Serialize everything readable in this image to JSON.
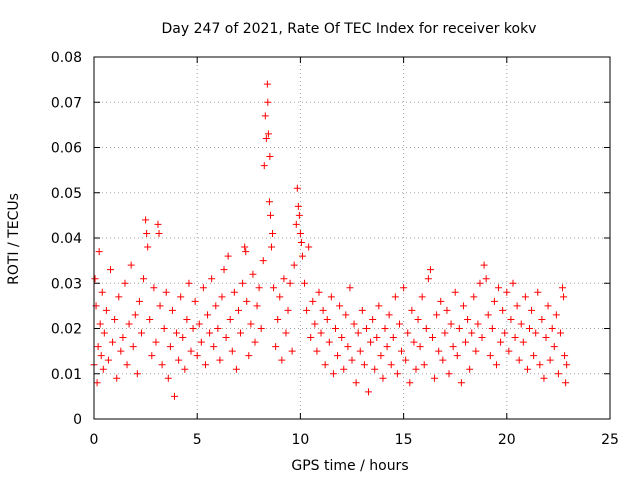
{
  "chart_data": {
    "type": "scatter",
    "title": "Day 247 of 2021, Rate Of TEC Index for receiver kokv",
    "xlabel": "GPS time / hours",
    "ylabel": "ROTI / TECUs",
    "xlim": [
      0,
      25
    ],
    "ylim": [
      0,
      0.08
    ],
    "xticks": [
      0,
      5,
      10,
      15,
      20,
      25
    ],
    "xtick_labels": [
      "0",
      "5",
      "10",
      "15",
      "20",
      "25"
    ],
    "yticks": [
      0,
      0.01,
      0.02,
      0.03,
      0.04,
      0.05,
      0.06,
      0.07,
      0.08
    ],
    "ytick_labels": [
      "0",
      "0.01",
      "0.02",
      "0.03",
      "0.04",
      "0.05",
      "0.06",
      "0.07",
      "0.08"
    ],
    "grid": true,
    "marker": "plus",
    "color": "#ff0000",
    "series": [
      {
        "points": [
          [
            0.0,
            0.012
          ],
          [
            0.05,
            0.031
          ],
          [
            0.1,
            0.025
          ],
          [
            0.15,
            0.008
          ],
          [
            0.2,
            0.016
          ],
          [
            0.25,
            0.037
          ],
          [
            0.3,
            0.021
          ],
          [
            0.35,
            0.014
          ],
          [
            0.4,
            0.028
          ],
          [
            0.45,
            0.011
          ],
          [
            0.5,
            0.019
          ],
          [
            0.6,
            0.024
          ],
          [
            0.7,
            0.013
          ],
          [
            0.8,
            0.033
          ],
          [
            0.9,
            0.017
          ],
          [
            1.0,
            0.022
          ],
          [
            1.1,
            0.009
          ],
          [
            1.2,
            0.027
          ],
          [
            1.3,
            0.015
          ],
          [
            1.4,
            0.018
          ],
          [
            1.5,
            0.03
          ],
          [
            1.6,
            0.012
          ],
          [
            1.7,
            0.021
          ],
          [
            1.8,
            0.034
          ],
          [
            1.9,
            0.016
          ],
          [
            2.0,
            0.023
          ],
          [
            2.1,
            0.01
          ],
          [
            2.2,
            0.026
          ],
          [
            2.3,
            0.019
          ],
          [
            2.4,
            0.031
          ],
          [
            2.5,
            0.044
          ],
          [
            2.55,
            0.041
          ],
          [
            2.6,
            0.038
          ],
          [
            2.7,
            0.022
          ],
          [
            2.8,
            0.014
          ],
          [
            2.9,
            0.029
          ],
          [
            3.0,
            0.017
          ],
          [
            3.1,
            0.043
          ],
          [
            3.15,
            0.041
          ],
          [
            3.2,
            0.025
          ],
          [
            3.3,
            0.012
          ],
          [
            3.4,
            0.02
          ],
          [
            3.5,
            0.028
          ],
          [
            3.6,
            0.009
          ],
          [
            3.7,
            0.016
          ],
          [
            3.8,
            0.024
          ],
          [
            3.9,
            0.005
          ],
          [
            4.0,
            0.019
          ],
          [
            4.1,
            0.013
          ],
          [
            4.2,
            0.027
          ],
          [
            4.3,
            0.018
          ],
          [
            4.4,
            0.011
          ],
          [
            4.5,
            0.022
          ],
          [
            4.6,
            0.03
          ],
          [
            4.7,
            0.015
          ],
          [
            4.8,
            0.02
          ],
          [
            4.9,
            0.026
          ],
          [
            5.0,
            0.014
          ],
          [
            5.1,
            0.021
          ],
          [
            5.2,
            0.017
          ],
          [
            5.3,
            0.029
          ],
          [
            5.4,
            0.012
          ],
          [
            5.5,
            0.023
          ],
          [
            5.6,
            0.019
          ],
          [
            5.7,
            0.031
          ],
          [
            5.8,
            0.016
          ],
          [
            5.9,
            0.025
          ],
          [
            6.0,
            0.02
          ],
          [
            6.1,
            0.013
          ],
          [
            6.2,
            0.027
          ],
          [
            6.3,
            0.033
          ],
          [
            6.4,
            0.018
          ],
          [
            6.5,
            0.036
          ],
          [
            6.6,
            0.022
          ],
          [
            6.7,
            0.015
          ],
          [
            6.8,
            0.028
          ],
          [
            6.9,
            0.011
          ],
          [
            7.0,
            0.024
          ],
          [
            7.1,
            0.019
          ],
          [
            7.2,
            0.03
          ],
          [
            7.3,
            0.038
          ],
          [
            7.35,
            0.037
          ],
          [
            7.4,
            0.026
          ],
          [
            7.5,
            0.014
          ],
          [
            7.6,
            0.021
          ],
          [
            7.7,
            0.032
          ],
          [
            7.8,
            0.017
          ],
          [
            7.9,
            0.025
          ],
          [
            8.0,
            0.029
          ],
          [
            8.1,
            0.02
          ],
          [
            8.2,
            0.035
          ],
          [
            8.25,
            0.056
          ],
          [
            8.3,
            0.067
          ],
          [
            8.35,
            0.062
          ],
          [
            8.4,
            0.074
          ],
          [
            8.42,
            0.07
          ],
          [
            8.45,
            0.063
          ],
          [
            8.5,
            0.048
          ],
          [
            8.52,
            0.058
          ],
          [
            8.55,
            0.045
          ],
          [
            8.6,
            0.038
          ],
          [
            8.65,
            0.041
          ],
          [
            8.7,
            0.029
          ],
          [
            8.8,
            0.016
          ],
          [
            8.9,
            0.022
          ],
          [
            9.0,
            0.027
          ],
          [
            9.1,
            0.013
          ],
          [
            9.2,
            0.031
          ],
          [
            9.3,
            0.019
          ],
          [
            9.4,
            0.024
          ],
          [
            9.5,
            0.03
          ],
          [
            9.6,
            0.015
          ],
          [
            9.7,
            0.034
          ],
          [
            9.8,
            0.043
          ],
          [
            9.85,
            0.051
          ],
          [
            9.9,
            0.047
          ],
          [
            9.95,
            0.045
          ],
          [
            10.0,
            0.041
          ],
          [
            10.05,
            0.039
          ],
          [
            10.1,
            0.036
          ],
          [
            10.2,
            0.03
          ],
          [
            10.3,
            0.024
          ],
          [
            10.4,
            0.038
          ],
          [
            10.5,
            0.018
          ],
          [
            10.6,
            0.026
          ],
          [
            10.7,
            0.021
          ],
          [
            10.8,
            0.015
          ],
          [
            10.9,
            0.028
          ],
          [
            11.0,
            0.019
          ],
          [
            11.1,
            0.024
          ],
          [
            11.2,
            0.012
          ],
          [
            11.3,
            0.022
          ],
          [
            11.4,
            0.017
          ],
          [
            11.5,
            0.027
          ],
          [
            11.6,
            0.01
          ],
          [
            11.7,
            0.02
          ],
          [
            11.8,
            0.014
          ],
          [
            11.9,
            0.025
          ],
          [
            12.0,
            0.018
          ],
          [
            12.1,
            0.011
          ],
          [
            12.2,
            0.023
          ],
          [
            12.3,
            0.016
          ],
          [
            12.4,
            0.029
          ],
          [
            12.5,
            0.013
          ],
          [
            12.6,
            0.021
          ],
          [
            12.7,
            0.008
          ],
          [
            12.8,
            0.019
          ],
          [
            12.9,
            0.015
          ],
          [
            13.0,
            0.024
          ],
          [
            13.1,
            0.012
          ],
          [
            13.2,
            0.02
          ],
          [
            13.3,
            0.006
          ],
          [
            13.4,
            0.017
          ],
          [
            13.5,
            0.022
          ],
          [
            13.6,
            0.011
          ],
          [
            13.7,
            0.018
          ],
          [
            13.8,
            0.025
          ],
          [
            13.9,
            0.014
          ],
          [
            14.0,
            0.009
          ],
          [
            14.1,
            0.02
          ],
          [
            14.2,
            0.016
          ],
          [
            14.3,
            0.023
          ],
          [
            14.4,
            0.012
          ],
          [
            14.5,
            0.018
          ],
          [
            14.6,
            0.027
          ],
          [
            14.7,
            0.01
          ],
          [
            14.8,
            0.021
          ],
          [
            14.9,
            0.015
          ],
          [
            15.0,
            0.029
          ],
          [
            15.1,
            0.013
          ],
          [
            15.2,
            0.019
          ],
          [
            15.3,
            0.008
          ],
          [
            15.4,
            0.024
          ],
          [
            15.5,
            0.017
          ],
          [
            15.6,
            0.011
          ],
          [
            15.7,
            0.022
          ],
          [
            15.8,
            0.016
          ],
          [
            15.9,
            0.027
          ],
          [
            16.0,
            0.012
          ],
          [
            16.1,
            0.02
          ],
          [
            16.2,
            0.031
          ],
          [
            16.3,
            0.033
          ],
          [
            16.4,
            0.018
          ],
          [
            16.5,
            0.009
          ],
          [
            16.6,
            0.023
          ],
          [
            16.7,
            0.015
          ],
          [
            16.8,
            0.026
          ],
          [
            16.9,
            0.013
          ],
          [
            17.0,
            0.019
          ],
          [
            17.1,
            0.024
          ],
          [
            17.2,
            0.01
          ],
          [
            17.3,
            0.021
          ],
          [
            17.4,
            0.016
          ],
          [
            17.5,
            0.028
          ],
          [
            17.6,
            0.014
          ],
          [
            17.7,
            0.02
          ],
          [
            17.8,
            0.008
          ],
          [
            17.9,
            0.025
          ],
          [
            18.0,
            0.017
          ],
          [
            18.1,
            0.022
          ],
          [
            18.2,
            0.011
          ],
          [
            18.3,
            0.019
          ],
          [
            18.4,
            0.027
          ],
          [
            18.5,
            0.015
          ],
          [
            18.6,
            0.021
          ],
          [
            18.7,
            0.03
          ],
          [
            18.8,
            0.018
          ],
          [
            18.9,
            0.034
          ],
          [
            19.0,
            0.031
          ],
          [
            19.1,
            0.023
          ],
          [
            19.2,
            0.014
          ],
          [
            19.3,
            0.02
          ],
          [
            19.4,
            0.026
          ],
          [
            19.5,
            0.012
          ],
          [
            19.6,
            0.029
          ],
          [
            19.7,
            0.017
          ],
          [
            19.8,
            0.024
          ],
          [
            19.9,
            0.019
          ],
          [
            20.0,
            0.028
          ],
          [
            20.1,
            0.015
          ],
          [
            20.2,
            0.022
          ],
          [
            20.3,
            0.03
          ],
          [
            20.4,
            0.018
          ],
          [
            20.5,
            0.025
          ],
          [
            20.6,
            0.013
          ],
          [
            20.7,
            0.021
          ],
          [
            20.8,
            0.017
          ],
          [
            20.9,
            0.027
          ],
          [
            21.0,
            0.011
          ],
          [
            21.1,
            0.02
          ],
          [
            21.2,
            0.024
          ],
          [
            21.3,
            0.014
          ],
          [
            21.4,
            0.019
          ],
          [
            21.5,
            0.028
          ],
          [
            21.6,
            0.012
          ],
          [
            21.7,
            0.022
          ],
          [
            21.8,
            0.009
          ],
          [
            21.9,
            0.018
          ],
          [
            22.0,
            0.025
          ],
          [
            22.1,
            0.013
          ],
          [
            22.2,
            0.02
          ],
          [
            22.3,
            0.016
          ],
          [
            22.4,
            0.023
          ],
          [
            22.5,
            0.01
          ],
          [
            22.6,
            0.019
          ],
          [
            22.7,
            0.029
          ],
          [
            22.75,
            0.027
          ],
          [
            22.8,
            0.014
          ],
          [
            22.85,
            0.008
          ],
          [
            22.9,
            0.012
          ]
        ]
      }
    ]
  }
}
